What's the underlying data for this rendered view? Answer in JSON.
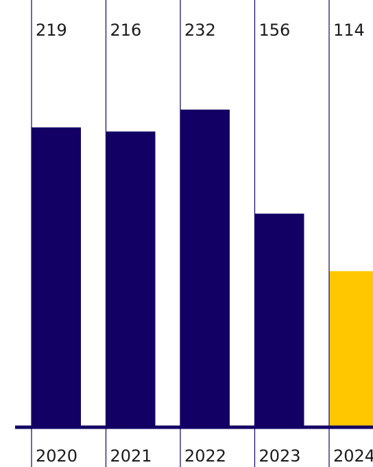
{
  "chart_data": {
    "type": "bar",
    "categories": [
      "2020",
      "2021",
      "2022",
      "2023",
      "2024"
    ],
    "values": [
      219,
      216,
      232,
      156,
      114
    ],
    "value_labels": [
      "219",
      "216",
      "232",
      "156",
      "114"
    ],
    "highlight_category": "2024",
    "ylim": [
      0,
      290
    ],
    "grid": false,
    "legend": "none",
    "title": "",
    "xlabel": "",
    "ylabel": ""
  },
  "colors": {
    "bar": "#120064",
    "highlight": "#ffc700",
    "divider": "#120064",
    "baseline": "#120064",
    "text": "#1a1a1a"
  }
}
